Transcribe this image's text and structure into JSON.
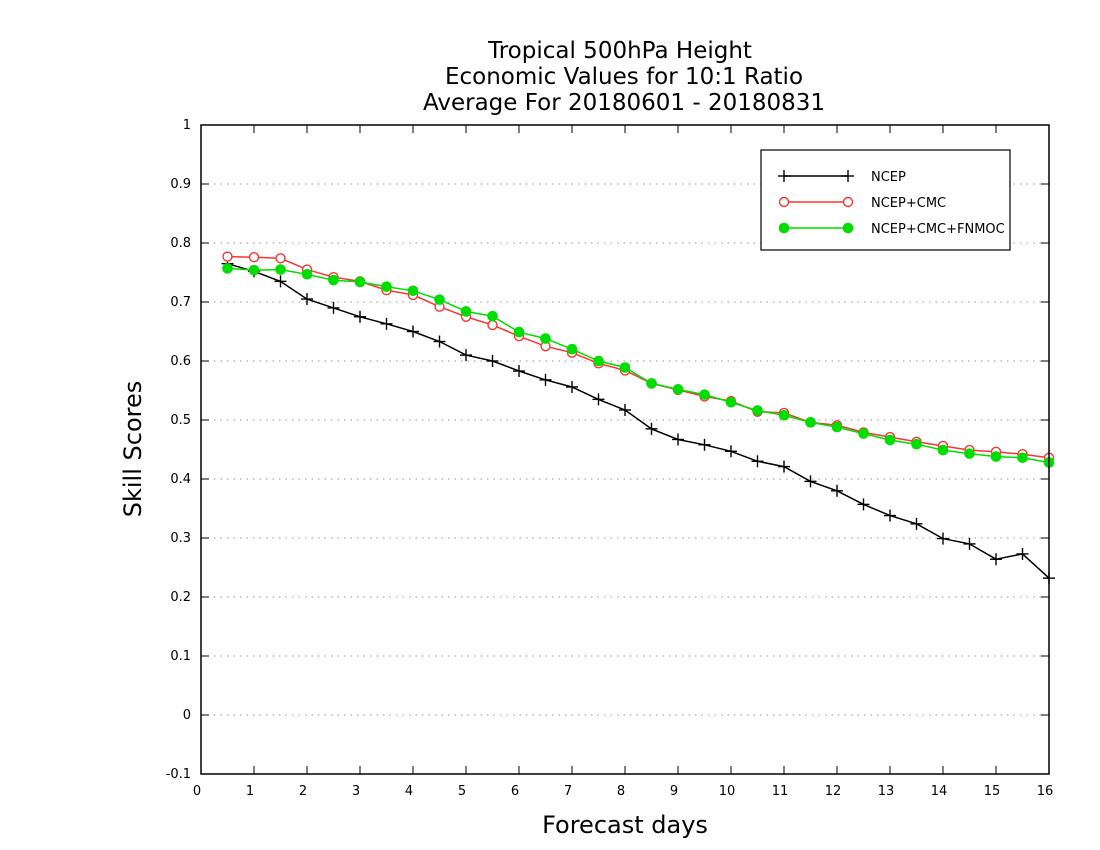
{
  "chart_data": {
    "type": "line",
    "title": [
      "Tropical 500hPa Height",
      "Economic Values for 10:1 Ratio",
      "Average For 20180601 - 20180831"
    ],
    "xlabel": "Forecast days",
    "ylabel": "Skill Scores",
    "xlim": [
      0,
      16
    ],
    "ylim": [
      -0.1,
      1
    ],
    "x_ticks": [
      "0",
      "1",
      "2",
      "3",
      "4",
      "5",
      "6",
      "7",
      "8",
      "9",
      "10",
      "11",
      "12",
      "13",
      "14",
      "15",
      "16"
    ],
    "y_ticks": [
      "-0.1",
      "0",
      "0.1",
      "0.2",
      "0.3",
      "0.4",
      "0.5",
      "0.6",
      "0.7",
      "0.8",
      "0.9",
      "1"
    ],
    "grid": true,
    "legend_position": "top-right",
    "x": [
      0.5,
      1,
      1.5,
      2,
      2.5,
      3,
      3.5,
      4,
      4.5,
      5,
      5.5,
      6,
      6.5,
      7,
      7.5,
      8,
      8.5,
      9,
      9.5,
      10,
      10.5,
      11,
      11.5,
      12,
      12.5,
      13,
      13.5,
      14,
      14.5,
      15,
      15.5,
      16
    ],
    "series": [
      {
        "name": "NCEP",
        "color": "#000000",
        "marker": "plus",
        "values": [
          0.765,
          0.752,
          0.735,
          0.705,
          0.69,
          0.675,
          0.663,
          0.65,
          0.633,
          0.61,
          0.6,
          0.583,
          0.568,
          0.556,
          0.535,
          0.517,
          0.485,
          0.467,
          0.458,
          0.447,
          0.43,
          0.421,
          0.396,
          0.38,
          0.357,
          0.338,
          0.324,
          0.299,
          0.29,
          0.264,
          0.273,
          0.232
        ]
      },
      {
        "name": "NCEP+CMC",
        "color": "#ff3333",
        "marker": "open-circle",
        "values": [
          0.777,
          0.776,
          0.774,
          0.755,
          0.742,
          0.735,
          0.72,
          0.712,
          0.692,
          0.675,
          0.661,
          0.642,
          0.625,
          0.614,
          0.596,
          0.584,
          0.562,
          0.551,
          0.54,
          0.532,
          0.514,
          0.512,
          0.496,
          0.491,
          0.479,
          0.471,
          0.463,
          0.456,
          0.449,
          0.446,
          0.442,
          0.436
        ]
      },
      {
        "name": "NCEP+CMC+FNMOC",
        "color": "#00dd00",
        "marker": "filled-circle",
        "values": [
          0.757,
          0.754,
          0.755,
          0.747,
          0.737,
          0.734,
          0.726,
          0.719,
          0.704,
          0.684,
          0.676,
          0.649,
          0.638,
          0.62,
          0.6,
          0.589,
          0.562,
          0.552,
          0.543,
          0.53,
          0.516,
          0.508,
          0.496,
          0.488,
          0.477,
          0.466,
          0.459,
          0.449,
          0.443,
          0.438,
          0.436,
          0.428
        ]
      }
    ]
  }
}
